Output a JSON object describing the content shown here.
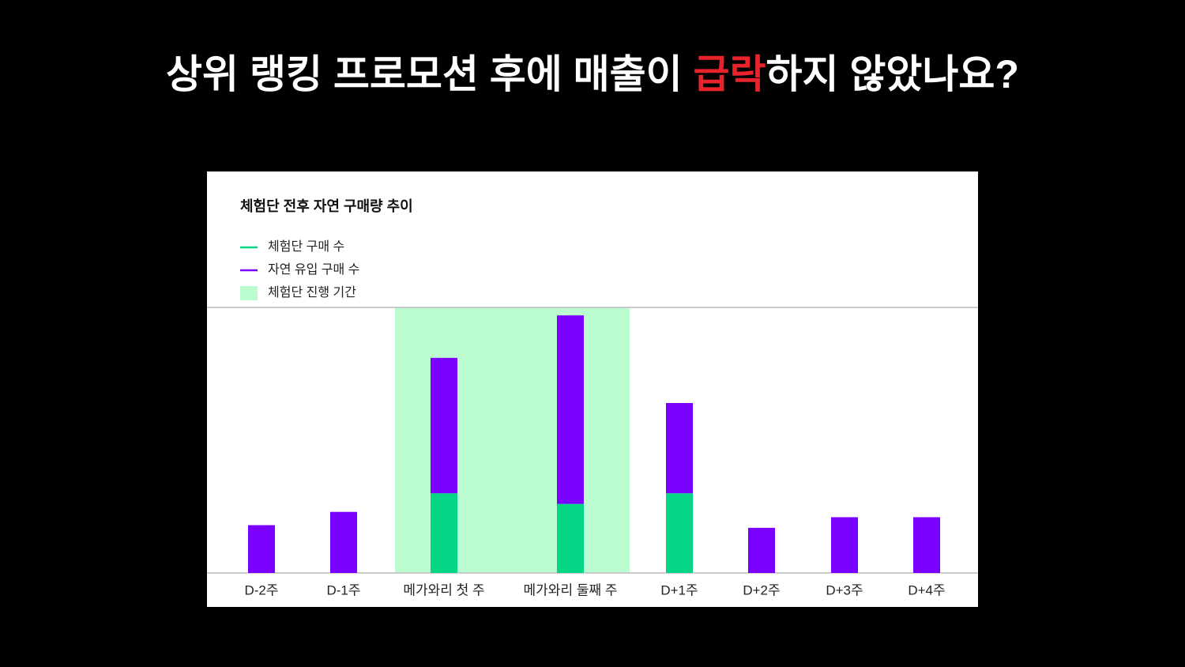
{
  "title_parts": [
    {
      "text": "상위 랭킹 프로모션 후에 매출이 "
    },
    {
      "text": "급락",
      "color": "#e8232b"
    },
    {
      "text": "하지 않았나요?"
    }
  ],
  "chart_data": {
    "type": "stacked_bar",
    "title": "체험단 전후 자연 구매량 추이",
    "categories": [
      "D-2주",
      "D-1주",
      "메가와리 첫 주",
      "메가와리 둘째 주",
      "D+1주",
      "D+2주",
      "D+3주",
      "D+4주"
    ],
    "series": [
      {
        "name": "체험단 구매 수",
        "color": "#05d686",
        "values": [
          0,
          0,
          30,
          26,
          30,
          0,
          0,
          0
        ]
      },
      {
        "name": "자연 유입 구매 수",
        "color": "#7a00ff",
        "values": [
          18,
          23,
          51,
          71,
          34,
          17,
          21,
          21
        ]
      }
    ],
    "highlight": {
      "name": "체험단 진행 기간",
      "color": "#bbfdd0",
      "range": [
        "메가와리 첫 주",
        "메가와리 둘째 주"
      ]
    },
    "ylim": [
      0,
      100
    ]
  }
}
